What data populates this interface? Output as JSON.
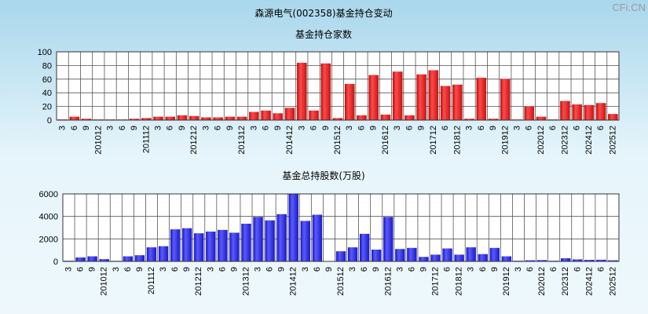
{
  "page": {
    "title": "森源电气(002358)基金持仓变动",
    "watermark": "CFi.CN"
  },
  "colors": {
    "bar_red": "#e52222",
    "bar_blue": "#2a2ae0",
    "plot_bg": "#ffffff",
    "grid": "#555555"
  },
  "chart_data": [
    {
      "type": "bar",
      "title": "基金持仓家数",
      "xlabel": "",
      "ylabel": "",
      "ylim": [
        0,
        100
      ],
      "yticks": [
        0,
        20,
        40,
        60,
        80,
        100
      ],
      "grid": true,
      "legend": "none",
      "tick_labels": [
        "3",
        "6",
        "9",
        "201012",
        "3",
        "6",
        "9",
        "201112",
        "3",
        "6",
        "9",
        "201212",
        "3",
        "6",
        "9",
        "201312",
        "3",
        "6",
        "9",
        "201412",
        "3",
        "6",
        "9",
        "201512",
        "3",
        "6",
        "9",
        "201612",
        "3",
        "6",
        "9",
        "201712",
        "6",
        "201812",
        "3",
        "6",
        "9",
        "201912",
        "3",
        "6",
        "202012",
        "6",
        "202312",
        "6",
        "202412",
        "6",
        "202512"
      ],
      "categories": [
        "2010-03",
        "2010-06",
        "2010-09",
        "2010-12",
        "2011-03",
        "2011-06",
        "2011-09",
        "2011-12",
        "2012-03",
        "2012-06",
        "2012-09",
        "2012-12",
        "2013-03",
        "2013-06",
        "2013-09",
        "2013-12",
        "2014-03",
        "2014-06",
        "2014-09",
        "2014-12",
        "2015-03",
        "2015-06",
        "2015-09",
        "2015-12",
        "2016-03",
        "2016-06",
        "2016-09",
        "2016-12",
        "2017-03",
        "2017-06",
        "2017-09",
        "2017-12",
        "2018-06",
        "2018-12",
        "2019-03",
        "2019-06",
        "2019-09",
        "2019-12",
        "2020-03",
        "2020-06",
        "2020-12",
        "2023-06",
        "2023-12",
        "2024-06",
        "2024-12",
        "2025-06",
        "2025-12"
      ],
      "values": [
        1,
        5,
        2,
        1,
        1,
        1,
        2,
        3,
        5,
        5,
        7,
        6,
        4,
        4,
        5,
        5,
        12,
        14,
        10,
        18,
        84,
        14,
        83,
        3,
        53,
        7,
        66,
        8,
        71,
        7,
        67,
        73,
        50,
        52,
        2,
        62,
        2,
        60,
        1,
        20,
        5,
        1,
        28,
        23,
        22,
        25,
        9
      ]
    },
    {
      "type": "bar",
      "title": "基金总持股数(万股)",
      "xlabel": "",
      "ylabel": "",
      "ylim": [
        0,
        6000
      ],
      "yticks": [
        0,
        2000,
        4000,
        6000
      ],
      "grid": true,
      "legend": "none",
      "tick_labels": [
        "3",
        "6",
        "9",
        "201012",
        "3",
        "6",
        "9",
        "201112",
        "3",
        "6",
        "9",
        "201212",
        "3",
        "6",
        "9",
        "201312",
        "3",
        "6",
        "9",
        "201412",
        "3",
        "6",
        "9",
        "201512",
        "3",
        "6",
        "9",
        "201612",
        "3",
        "6",
        "9",
        "201712",
        "6",
        "201812",
        "3",
        "6",
        "9",
        "201912",
        "3",
        "6",
        "202012",
        "6",
        "202312",
        "6",
        "202412",
        "6",
        "202512"
      ],
      "categories": [
        "2010-03",
        "2010-06",
        "2010-09",
        "2010-12",
        "2011-03",
        "2011-06",
        "2011-09",
        "2011-12",
        "2012-03",
        "2012-06",
        "2012-09",
        "2012-12",
        "2013-03",
        "2013-06",
        "2013-09",
        "2013-12",
        "2014-03",
        "2014-06",
        "2014-09",
        "2014-12",
        "2015-03",
        "2015-06",
        "2015-09",
        "2015-12",
        "2016-03",
        "2016-06",
        "2016-09",
        "2016-12",
        "2017-03",
        "2017-06",
        "2017-09",
        "2017-12",
        "2018-06",
        "2018-12",
        "2019-03",
        "2019-06",
        "2019-09",
        "2019-12",
        "2020-03",
        "2020-06",
        "2020-12",
        "2023-06",
        "2023-12",
        "2024-06",
        "2024-12",
        "2025-06",
        "2025-12"
      ],
      "values": [
        60,
        350,
        450,
        200,
        50,
        450,
        550,
        1250,
        1350,
        2850,
        2950,
        2500,
        2650,
        2800,
        2550,
        3350,
        3950,
        3650,
        4200,
        6000,
        3600,
        4150,
        30,
        900,
        1250,
        2450,
        1050,
        3950,
        1100,
        1200,
        400,
        600,
        1150,
        600,
        1250,
        650,
        1200,
        450,
        60,
        100,
        120,
        60,
        280,
        180,
        140,
        150,
        100
      ]
    }
  ]
}
